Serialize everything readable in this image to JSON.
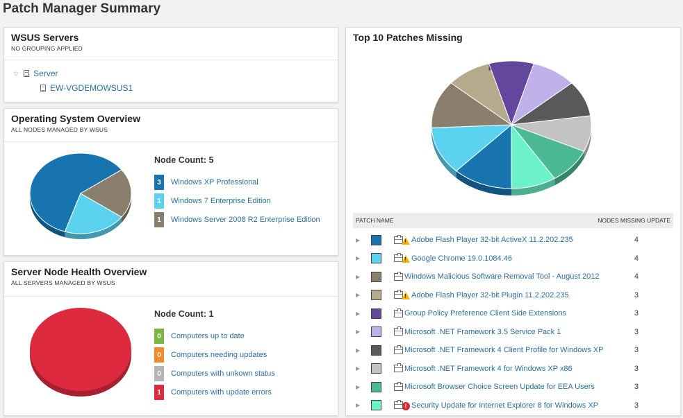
{
  "page_title": "Patch Manager Summary",
  "wsus": {
    "title": "WSUS Servers",
    "subtitle": "NO GROUPING APPLIED",
    "tree": {
      "root_label": "Server",
      "child_label": "EW-VGDEMOWSUS1"
    }
  },
  "os_overview": {
    "title": "Operating System Overview",
    "subtitle": "ALL NODES MANAGED BY WSUS",
    "node_count_label": "Node Count: 5",
    "items": [
      {
        "count": "3",
        "label": "Windows XP Professional",
        "color": "#1774ae"
      },
      {
        "count": "1",
        "label": "Windows 7 Enterprise Edition",
        "color": "#5bd3f0"
      },
      {
        "count": "1",
        "label": "Windows Server 2008 R2 Enterprise Edition",
        "color": "#8a7f6c"
      }
    ]
  },
  "health": {
    "title": "Server Node Health Overview",
    "subtitle": "ALL SERVERS MANAGED BY WSUS",
    "node_count_label": "Node Count: 1",
    "items": [
      {
        "count": "0",
        "label": "Computers up to date",
        "color": "#77b843"
      },
      {
        "count": "0",
        "label": "Computers needing updates",
        "color": "#f08a2c"
      },
      {
        "count": "0",
        "label": "Computers with unkown status",
        "color": "#b5b5b5"
      },
      {
        "count": "1",
        "label": "Computers with update errors",
        "color": "#dd2a3f"
      }
    ]
  },
  "patches": {
    "title": "Top 10 Patches Missing",
    "col_patch_name": "PATCH NAME",
    "col_nodes_missing": "NODES MISSING UPDATE",
    "rows": [
      {
        "name": "Adobe Flash Player 32-bit ActiveX 11.2.202.235",
        "count": "4",
        "color": "#1774ae",
        "status_icon": "warning-icon"
      },
      {
        "name": "Google Chrome 19.0.1084.46",
        "count": "4",
        "color": "#5bd3f0",
        "status_icon": "warning-icon"
      },
      {
        "name": "Windows Malicious Software Removal Tool - August 2012",
        "count": "4",
        "color": "#8a7f6c",
        "status_icon": ""
      },
      {
        "name": "Adobe Flash Player 32-bit Plugin 11.2.202.235",
        "count": "3",
        "color": "#b6aa8d",
        "status_icon": "warning-icon"
      },
      {
        "name": "Group Policy Preference Client Side Extensions",
        "count": "3",
        "color": "#62479d",
        "status_icon": ""
      },
      {
        "name": "Microsoft .NET Framework 3.5 Service Pack 1",
        "count": "3",
        "color": "#c0b1ea",
        "status_icon": ""
      },
      {
        "name": "Microsoft .NET Framework 4 Client Profile for Windows XP",
        "count": "3",
        "color": "#58595b",
        "status_icon": ""
      },
      {
        "name": "Microsoft .NET Framework 4 for Windows XP x86",
        "count": "3",
        "color": "#c3c3c3",
        "status_icon": ""
      },
      {
        "name": "Microsoft Browser Choice Screen Update for EEA Users",
        "count": "3",
        "color": "#4bb993",
        "status_icon": ""
      },
      {
        "name": "Security Update for Internet Explorer 8 for Windows XP",
        "count": "3",
        "color": "#6cf2c9",
        "status_icon": "error-icon"
      }
    ]
  }
}
